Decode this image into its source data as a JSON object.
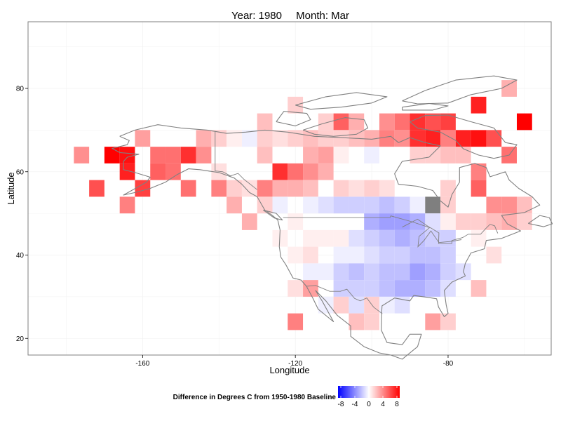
{
  "title": {
    "year_text": "Year: 1980",
    "month_text": "Month: Mar"
  },
  "chart_data": {
    "type": "heatmap",
    "title": "Year: 1980     Month: Mar",
    "xlabel": "Longitude",
    "ylabel": "Latitude",
    "xlim": [
      -190,
      -53
    ],
    "ylim": [
      16,
      96
    ],
    "x_ticks": [
      -160,
      -120,
      -80
    ],
    "y_ticks": [
      20,
      40,
      60,
      80
    ],
    "x_tick_labels": [
      "-160",
      "-120",
      "-80"
    ],
    "y_tick_labels": [
      "20",
      "40",
      "60",
      "80"
    ],
    "grid": true,
    "cell_size_deg": 4,
    "legend": {
      "title": "Difference in Degrees C from 1950-1980 Baseline",
      "placement": "bottom",
      "ticks": [
        -8,
        -4,
        0,
        4,
        8
      ],
      "tick_labels": [
        "-8",
        "-4",
        "0",
        "4",
        "8"
      ],
      "low_color": "#0000ff",
      "mid_color": "#ffffff",
      "high_color": "#ff0000",
      "missing_color": "#7f7f7f"
    },
    "cells": [
      {
        "lon": -176,
        "lat": 64,
        "v": 3.5
      },
      {
        "lon": -172,
        "lat": 56,
        "v": 5.5
      },
      {
        "lon": -168,
        "lat": 64,
        "v": 8
      },
      {
        "lon": -164,
        "lat": 64,
        "v": 7.5
      },
      {
        "lon": -164,
        "lat": 60,
        "v": 7
      },
      {
        "lon": -164,
        "lat": 52,
        "v": 4
      },
      {
        "lon": -160,
        "lat": 68,
        "v": 3
      },
      {
        "lon": -160,
        "lat": 56,
        "v": 6
      },
      {
        "lon": -156,
        "lat": 64,
        "v": 4.5
      },
      {
        "lon": -156,
        "lat": 60,
        "v": 5
      },
      {
        "lon": -152,
        "lat": 64,
        "v": 4.5
      },
      {
        "lon": -152,
        "lat": 60,
        "v": 4.5
      },
      {
        "lon": -148,
        "lat": 64,
        "v": 6.5
      },
      {
        "lon": -148,
        "lat": 56,
        "v": 4.5
      },
      {
        "lon": -144,
        "lat": 68,
        "v": 2.5
      },
      {
        "lon": -144,
        "lat": 64,
        "v": 3.5
      },
      {
        "lon": -140,
        "lat": 68,
        "v": 1.5
      },
      {
        "lon": -140,
        "lat": 60,
        "v": 1
      },
      {
        "lon": -140,
        "lat": 56,
        "v": 4
      },
      {
        "lon": -136,
        "lat": 68,
        "v": 0.5
      },
      {
        "lon": -136,
        "lat": 56,
        "v": 1.5
      },
      {
        "lon": -136,
        "lat": 52,
        "v": 2.5
      },
      {
        "lon": -132,
        "lat": 68,
        "v": -0.5
      },
      {
        "lon": -132,
        "lat": 56,
        "v": 1
      },
      {
        "lon": -132,
        "lat": 48,
        "v": 2.5
      },
      {
        "lon": -128,
        "lat": 72,
        "v": 2
      },
      {
        "lon": -128,
        "lat": 68,
        "v": 1.5
      },
      {
        "lon": -128,
        "lat": 64,
        "v": 2
      },
      {
        "lon": -128,
        "lat": 56,
        "v": 4
      },
      {
        "lon": -128,
        "lat": 52,
        "v": 1.5
      },
      {
        "lon": -124,
        "lat": 68,
        "v": 1
      },
      {
        "lon": -124,
        "lat": 60,
        "v": 6.5
      },
      {
        "lon": -124,
        "lat": 56,
        "v": 2.5
      },
      {
        "lon": -124,
        "lat": 52,
        "v": -0.5
      },
      {
        "lon": -124,
        "lat": 44,
        "v": 0.5
      },
      {
        "lon": -120,
        "lat": 76,
        "v": 1.5
      },
      {
        "lon": -120,
        "lat": 68,
        "v": 1.5
      },
      {
        "lon": -120,
        "lat": 60,
        "v": 4.5
      },
      {
        "lon": -120,
        "lat": 56,
        "v": 2.5
      },
      {
        "lon": -120,
        "lat": 48,
        "v": 0.5
      },
      {
        "lon": -120,
        "lat": 40,
        "v": 0.5
      },
      {
        "lon": -120,
        "lat": 32,
        "v": 1
      },
      {
        "lon": -120,
        "lat": 24,
        "v": 4
      },
      {
        "lon": -116,
        "lat": 68,
        "v": 2
      },
      {
        "lon": -116,
        "lat": 64,
        "v": 2.5
      },
      {
        "lon": -116,
        "lat": 60,
        "v": 3.5
      },
      {
        "lon": -116,
        "lat": 56,
        "v": 2
      },
      {
        "lon": -116,
        "lat": 52,
        "v": -0.5
      },
      {
        "lon": -116,
        "lat": 44,
        "v": 0.5
      },
      {
        "lon": -116,
        "lat": 40,
        "v": 1
      },
      {
        "lon": -116,
        "lat": 36,
        "v": -0.5
      },
      {
        "lon": -116,
        "lat": 32,
        "v": 3
      },
      {
        "lon": -112,
        "lat": 72,
        "v": 1.5
      },
      {
        "lon": -112,
        "lat": 68,
        "v": 1.5
      },
      {
        "lon": -112,
        "lat": 64,
        "v": 3
      },
      {
        "lon": -112,
        "lat": 60,
        "v": 2.5
      },
      {
        "lon": -112,
        "lat": 52,
        "v": -1
      },
      {
        "lon": -112,
        "lat": 44,
        "v": 0.5
      },
      {
        "lon": -112,
        "lat": 36,
        "v": -0.5
      },
      {
        "lon": -112,
        "lat": 28,
        "v": -0.5
      },
      {
        "lon": -108,
        "lat": 72,
        "v": 5
      },
      {
        "lon": -108,
        "lat": 68,
        "v": 1.5
      },
      {
        "lon": -108,
        "lat": 64,
        "v": 0.5
      },
      {
        "lon": -108,
        "lat": 56,
        "v": 1.5
      },
      {
        "lon": -108,
        "lat": 52,
        "v": -1.5
      },
      {
        "lon": -108,
        "lat": 44,
        "v": 0.5
      },
      {
        "lon": -108,
        "lat": 40,
        "v": -0.5
      },
      {
        "lon": -108,
        "lat": 36,
        "v": -1.5
      },
      {
        "lon": -108,
        "lat": 32,
        "v": -1.5
      },
      {
        "lon": -108,
        "lat": 28,
        "v": 1.5
      },
      {
        "lon": -104,
        "lat": 72,
        "v": 2.5
      },
      {
        "lon": -104,
        "lat": 68,
        "v": 2
      },
      {
        "lon": -104,
        "lat": 56,
        "v": 1
      },
      {
        "lon": -104,
        "lat": 52,
        "v": -1.5
      },
      {
        "lon": -104,
        "lat": 44,
        "v": -1
      },
      {
        "lon": -104,
        "lat": 40,
        "v": -0.5
      },
      {
        "lon": -104,
        "lat": 36,
        "v": -2
      },
      {
        "lon": -104,
        "lat": 32,
        "v": -1.5
      },
      {
        "lon": -104,
        "lat": 28,
        "v": -1
      },
      {
        "lon": -104,
        "lat": 24,
        "v": 2
      },
      {
        "lon": -100,
        "lat": 68,
        "v": 2.5
      },
      {
        "lon": -100,
        "lat": 64,
        "v": -0.5
      },
      {
        "lon": -100,
        "lat": 56,
        "v": 1.5
      },
      {
        "lon": -100,
        "lat": 52,
        "v": -1.5
      },
      {
        "lon": -100,
        "lat": 48,
        "v": -2.5
      },
      {
        "lon": -100,
        "lat": 44,
        "v": -1.5
      },
      {
        "lon": -100,
        "lat": 40,
        "v": -1
      },
      {
        "lon": -100,
        "lat": 36,
        "v": -1.5
      },
      {
        "lon": -100,
        "lat": 32,
        "v": -1.5
      },
      {
        "lon": -100,
        "lat": 28,
        "v": 1.5
      },
      {
        "lon": -100,
        "lat": 24,
        "v": 1.5
      },
      {
        "lon": -96,
        "lat": 72,
        "v": 3.5
      },
      {
        "lon": -96,
        "lat": 68,
        "v": 4
      },
      {
        "lon": -96,
        "lat": 56,
        "v": 1
      },
      {
        "lon": -96,
        "lat": 52,
        "v": -2
      },
      {
        "lon": -96,
        "lat": 48,
        "v": -3
      },
      {
        "lon": -96,
        "lat": 44,
        "v": -2
      },
      {
        "lon": -96,
        "lat": 40,
        "v": -1.5
      },
      {
        "lon": -96,
        "lat": 36,
        "v": -2
      },
      {
        "lon": -96,
        "lat": 32,
        "v": -2
      },
      {
        "lon": -96,
        "lat": 28,
        "v": -0.5
      },
      {
        "lon": -92,
        "lat": 72,
        "v": 4.5
      },
      {
        "lon": -92,
        "lat": 68,
        "v": 3.5
      },
      {
        "lon": -92,
        "lat": 52,
        "v": -1.5
      },
      {
        "lon": -92,
        "lat": 48,
        "v": -3
      },
      {
        "lon": -92,
        "lat": 44,
        "v": -2.5
      },
      {
        "lon": -92,
        "lat": 40,
        "v": -1.5
      },
      {
        "lon": -92,
        "lat": 36,
        "v": -2
      },
      {
        "lon": -92,
        "lat": 32,
        "v": -2.5
      },
      {
        "lon": -92,
        "lat": 28,
        "v": -1
      },
      {
        "lon": -88,
        "lat": 72,
        "v": 6.5
      },
      {
        "lon": -88,
        "lat": 68,
        "v": 6.5
      },
      {
        "lon": -88,
        "lat": 64,
        "v": 1.5
      },
      {
        "lon": -88,
        "lat": 52,
        "v": -0.5
      },
      {
        "lon": -88,
        "lat": 48,
        "v": -2.5
      },
      {
        "lon": -88,
        "lat": 44,
        "v": -2
      },
      {
        "lon": -88,
        "lat": 40,
        "v": -2
      },
      {
        "lon": -88,
        "lat": 36,
        "v": -3
      },
      {
        "lon": -88,
        "lat": 32,
        "v": -2.5
      },
      {
        "lon": -84,
        "lat": 72,
        "v": 5.5
      },
      {
        "lon": -84,
        "lat": 68,
        "v": 7
      },
      {
        "lon": -84,
        "lat": 64,
        "v": 1.5
      },
      {
        "lon": -84,
        "lat": 52,
        "v": null
      },
      {
        "lon": -84,
        "lat": 48,
        "v": -1
      },
      {
        "lon": -84,
        "lat": 44,
        "v": -1.5
      },
      {
        "lon": -84,
        "lat": 40,
        "v": -2
      },
      {
        "lon": -84,
        "lat": 36,
        "v": -2.5
      },
      {
        "lon": -84,
        "lat": 32,
        "v": -2
      },
      {
        "lon": -84,
        "lat": 24,
        "v": 3
      },
      {
        "lon": -80,
        "lat": 72,
        "v": 6
      },
      {
        "lon": -80,
        "lat": 68,
        "v": 4
      },
      {
        "lon": -80,
        "lat": 64,
        "v": 2
      },
      {
        "lon": -80,
        "lat": 56,
        "v": 1.5
      },
      {
        "lon": -80,
        "lat": 52,
        "v": 1.5
      },
      {
        "lon": -80,
        "lat": 48,
        "v": 0.5
      },
      {
        "lon": -80,
        "lat": 44,
        "v": -1.5
      },
      {
        "lon": -80,
        "lat": 40,
        "v": -1.5
      },
      {
        "lon": -80,
        "lat": 36,
        "v": -1.5
      },
      {
        "lon": -80,
        "lat": 32,
        "v": -1
      },
      {
        "lon": -80,
        "lat": 24,
        "v": 1.5
      },
      {
        "lon": -76,
        "lat": 68,
        "v": 7
      },
      {
        "lon": -76,
        "lat": 64,
        "v": 2
      },
      {
        "lon": -76,
        "lat": 48,
        "v": 1.5
      },
      {
        "lon": -76,
        "lat": 36,
        "v": -1
      },
      {
        "lon": -72,
        "lat": 76,
        "v": 7
      },
      {
        "lon": -72,
        "lat": 68,
        "v": 7.5
      },
      {
        "lon": -72,
        "lat": 60,
        "v": 4
      },
      {
        "lon": -72,
        "lat": 56,
        "v": 5
      },
      {
        "lon": -72,
        "lat": 48,
        "v": 1.5
      },
      {
        "lon": -72,
        "lat": 44,
        "v": 0.5
      },
      {
        "lon": -72,
        "lat": 32,
        "v": 2
      },
      {
        "lon": -68,
        "lat": 68,
        "v": 5.5
      },
      {
        "lon": -68,
        "lat": 52,
        "v": 3.5
      },
      {
        "lon": -68,
        "lat": 48,
        "v": 2
      },
      {
        "lon": -68,
        "lat": 40,
        "v": 1
      },
      {
        "lon": -64,
        "lat": 80,
        "v": 2.5
      },
      {
        "lon": -64,
        "lat": 64,
        "v": 4.5
      },
      {
        "lon": -64,
        "lat": 52,
        "v": 3.5
      },
      {
        "lon": -64,
        "lat": 48,
        "v": 2.5
      },
      {
        "lon": -60,
        "lat": 72,
        "v": 8
      },
      {
        "lon": -60,
        "lat": 52,
        "v": 2
      },
      {
        "lon": -60,
        "lat": 48,
        "v": 1.5
      }
    ]
  }
}
